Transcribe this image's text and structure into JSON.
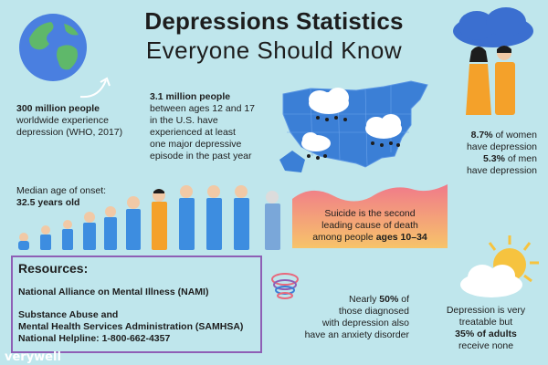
{
  "title": {
    "line1": "Depressions Statistics",
    "line2": "Everyone Should Know"
  },
  "stat_world": {
    "bold": "300 million people",
    "text_line1": "worldwide experience",
    "text_line2": "depression (WHO, 2017)"
  },
  "stat_youth": {
    "bold": "3.1 million people",
    "line1": "between ages 12 and 17",
    "line2": "in the U.S. have",
    "line3": "experienced at least",
    "line4": "one major depressive",
    "line5": "episode in the past year"
  },
  "stat_gender": {
    "women_value": "8.7%",
    "women_text": " of women",
    "women_line2": "have depression",
    "men_value": "5.3%",
    "men_text": " of men",
    "men_line2": "have depression"
  },
  "stat_onset": {
    "line1": "Median age of onset:",
    "line2": "32.5 years old"
  },
  "stat_suicide": {
    "line1": "Suicide is the second",
    "line2": "leading cause of death",
    "line3_prefix": "among people ",
    "line3_bold": "ages 10–34"
  },
  "resources": {
    "heading": "Resources:",
    "org1": "National Alliance on Mental Illness (NAMI)",
    "org2_line1": "Substance Abuse and",
    "org2_line2": "Mental Health Services Administration (SAMHSA)",
    "helpline": "National Helpline: 1-800-662-4357"
  },
  "stat_anxiety": {
    "line1_prefix": "Nearly ",
    "line1_bold": "50%",
    "line1_suffix": " of",
    "line2": "those diagnosed",
    "line3": "with depression also",
    "line4": "have an anxiety disorder"
  },
  "stat_treatable": {
    "line1": "Depression is very",
    "line2": "treatable but",
    "line3_bold": "35% of adults",
    "line4": "receive none"
  },
  "logo": "verywell",
  "colors": {
    "background": "#bfe6ec",
    "map_blue": "#3b7fd6",
    "figure_blue": "#3d8de0",
    "figure_orange": "#f4a12a",
    "suicide_gradient_top": "#f07a8a",
    "suicide_gradient_bottom": "#f7c46a",
    "resources_border": "#8e5fb5",
    "sun": "#f6c33f"
  }
}
